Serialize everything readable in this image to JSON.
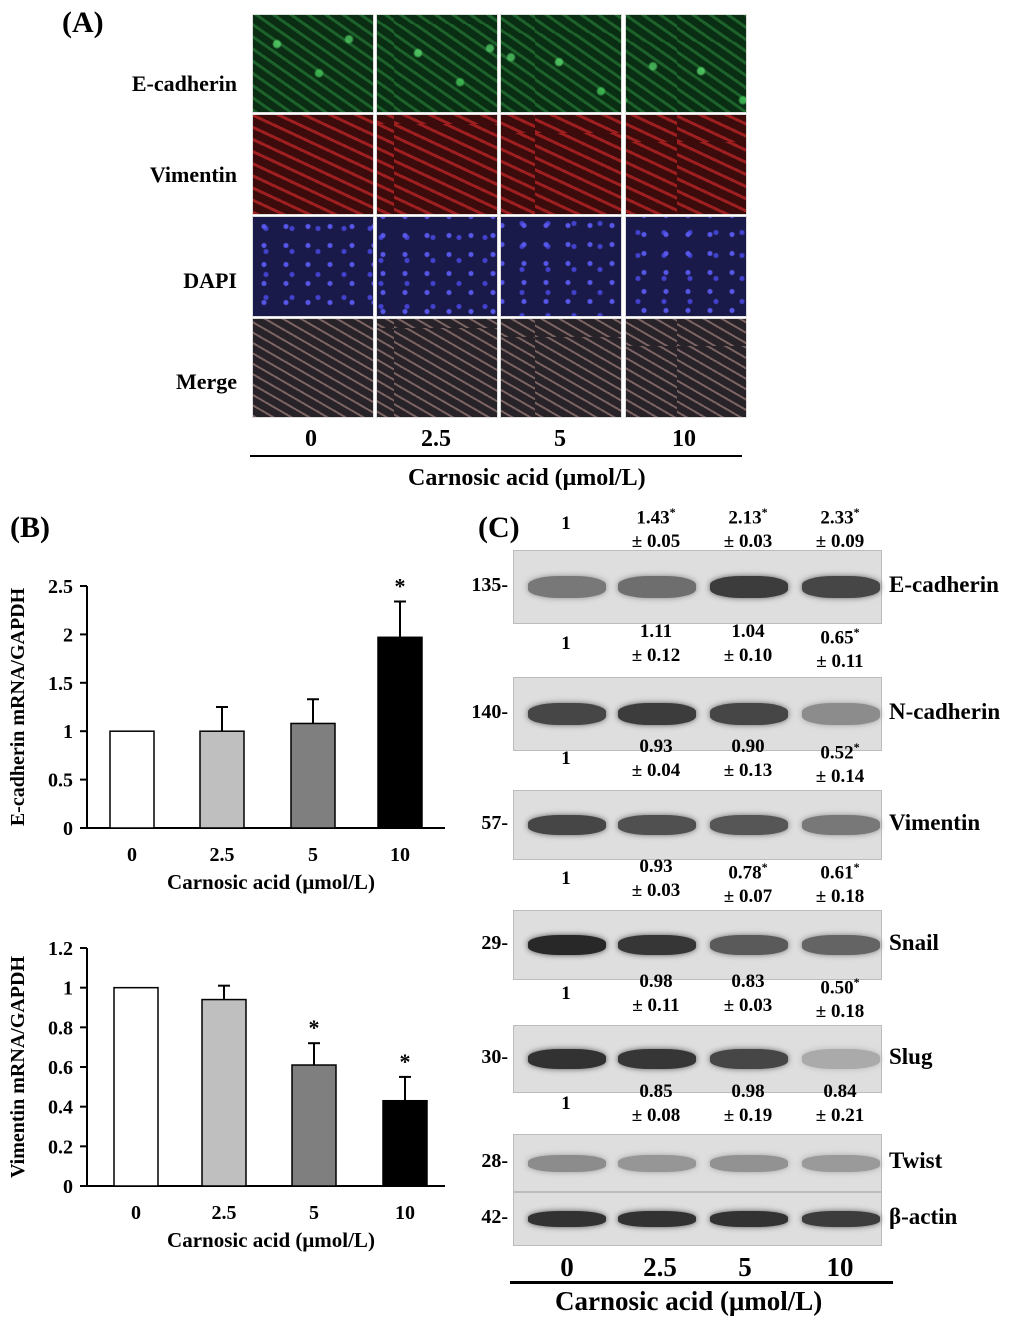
{
  "panel_a": {
    "label": "(A)",
    "rows": [
      "E-cadherin",
      "Vimentin",
      "DAPI",
      "Merge"
    ],
    "doses": [
      "0",
      "2.5",
      "5",
      "10"
    ],
    "axis_title": "Carnosic acid  (μmol/L)"
  },
  "panel_b": {
    "label": "(B)"
  },
  "chart_data": [
    {
      "type": "bar",
      "categories": [
        "0",
        "2.5",
        "5",
        "10"
      ],
      "values": [
        1.0,
        1.0,
        1.08,
        1.97
      ],
      "errors": [
        0,
        0.25,
        0.25,
        0.37
      ],
      "significance": [
        "",
        "",
        "",
        "*"
      ],
      "bar_colors": [
        "#ffffff",
        "#bfbfbf",
        "#7f7f7f",
        "#000000"
      ],
      "ylim": [
        0,
        2.5
      ],
      "yticks": [
        "0",
        "0.5",
        "1",
        "1.5",
        "2",
        "2.5"
      ],
      "xlabel": "Carnosic acid  (μmol/L)",
      "ylabel": "E-cadherin mRNA/GAPDH"
    },
    {
      "type": "bar",
      "categories": [
        "0",
        "2.5",
        "5",
        "10"
      ],
      "values": [
        1.0,
        0.94,
        0.61,
        0.43
      ],
      "errors": [
        0,
        0.07,
        0.11,
        0.12
      ],
      "significance": [
        "",
        "",
        "*",
        "*"
      ],
      "bar_colors": [
        "#ffffff",
        "#bfbfbf",
        "#7f7f7f",
        "#000000"
      ],
      "ylim": [
        0,
        1.2
      ],
      "yticks": [
        "0",
        "0.2",
        "0.4",
        "0.6",
        "0.8",
        "1",
        "1.2"
      ],
      "xlabel": "Carnosic acid  (μmol/L)",
      "ylabel": "Vimentin mRNA/GAPDH"
    }
  ],
  "panel_c": {
    "label": "(C)",
    "doses": [
      "0",
      "2.5",
      "5",
      "10"
    ],
    "axis_title": "Carnosic acid (μmol/L)",
    "blots": [
      {
        "protein": "E-cadherin",
        "mw": "135-",
        "quant": [
          [
            "1",
            ""
          ],
          [
            "1.43*",
            "± 0.05"
          ],
          [
            "2.13*",
            "± 0.03"
          ],
          [
            "2.33*",
            "± 0.09"
          ]
        ],
        "intensity": [
          0.55,
          0.6,
          0.85,
          0.8
        ]
      },
      {
        "protein": "N-cadherin",
        "mw": "140-",
        "quant": [
          [
            "1",
            ""
          ],
          [
            "1.11",
            "± 0.12"
          ],
          [
            "1.04",
            "± 0.10"
          ],
          [
            "0.65*",
            "± 0.11"
          ]
        ],
        "intensity": [
          0.8,
          0.85,
          0.8,
          0.45
        ]
      },
      {
        "protein": "Vimentin",
        "mw": "57-",
        "quant": [
          [
            "1",
            ""
          ],
          [
            "0.93",
            "± 0.04"
          ],
          [
            "0.90",
            "± 0.13"
          ],
          [
            "0.52*",
            "± 0.14"
          ]
        ],
        "intensity": [
          0.8,
          0.75,
          0.72,
          0.55
        ]
      },
      {
        "protein": "Snail",
        "mw": "29-",
        "quant": [
          [
            "1",
            ""
          ],
          [
            "0.93",
            "± 0.03"
          ],
          [
            "0.78*",
            "± 0.07"
          ],
          [
            "0.61*",
            "± 0.18"
          ]
        ],
        "intensity": [
          0.95,
          0.88,
          0.7,
          0.65
        ]
      },
      {
        "protein": "Slug",
        "mw": "30-",
        "quant": [
          [
            "1",
            ""
          ],
          [
            "0.98",
            "± 0.11"
          ],
          [
            "0.83",
            "± 0.03"
          ],
          [
            "0.50*",
            "± 0.18"
          ]
        ],
        "intensity": [
          0.9,
          0.88,
          0.8,
          0.3
        ]
      },
      {
        "protein": "Twist",
        "mw": "28-",
        "quant": [
          [
            "1",
            ""
          ],
          [
            "0.85",
            "± 0.08"
          ],
          [
            "0.98",
            "± 0.19"
          ],
          [
            "0.84",
            "± 0.21"
          ]
        ],
        "intensity": [
          0.45,
          0.4,
          0.42,
          0.38
        ]
      },
      {
        "protein": "β-actin",
        "mw": "42-",
        "quant": [],
        "intensity": [
          0.9,
          0.9,
          0.9,
          0.85
        ]
      }
    ]
  }
}
